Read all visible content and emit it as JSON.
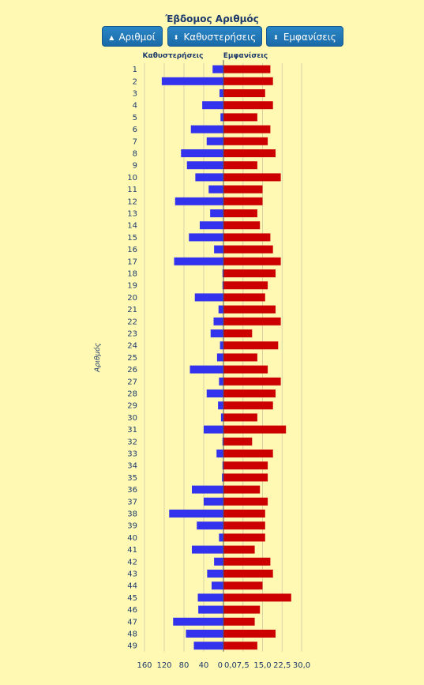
{
  "title": "Έβδομος Αριθμός",
  "buttons": [
    {
      "label": "Αριθμοί",
      "icon": "sort-up-icon"
    },
    {
      "label": "Καθυστερήσεις",
      "icon": "sort-both-icon"
    },
    {
      "label": "Εμφανίσεις",
      "icon": "sort-both-icon"
    }
  ],
  "chart_data": {
    "type": "bar",
    "orientation": "horizontal",
    "ylabel": "Αριθμός",
    "left_header": "Καθυστερήσεις",
    "right_header": "Εμφανίσεις",
    "left_ticks": [
      "160",
      "120",
      "80",
      "40",
      "0"
    ],
    "right_ticks": [
      "0,0",
      "7,5",
      "15,0",
      "22,5",
      "30,0"
    ],
    "left_xlim": [
      160,
      0
    ],
    "right_xlim": [
      0,
      30
    ],
    "grid": true,
    "categories": [
      "1",
      "2",
      "3",
      "4",
      "5",
      "6",
      "7",
      "8",
      "9",
      "10",
      "11",
      "12",
      "13",
      "14",
      "15",
      "16",
      "17",
      "18",
      "19",
      "20",
      "21",
      "22",
      "23",
      "24",
      "25",
      "26",
      "27",
      "28",
      "29",
      "30",
      "31",
      "32",
      "33",
      "34",
      "35",
      "36",
      "37",
      "38",
      "39",
      "40",
      "41",
      "42",
      "43",
      "44",
      "45",
      "46",
      "47",
      "48",
      "49"
    ],
    "series": [
      {
        "name": "Καθυστερήσεις",
        "color": "#3333ee",
        "values": [
          22,
          125,
          8,
          43,
          6,
          66,
          34,
          86,
          74,
          57,
          30,
          98,
          27,
          48,
          70,
          19,
          100,
          2,
          2,
          58,
          10,
          20,
          26,
          7,
          13,
          68,
          9,
          34,
          11,
          5,
          40,
          2,
          14,
          2,
          3,
          64,
          40,
          110,
          54,
          9,
          64,
          19,
          33,
          24,
          52,
          51,
          102,
          76,
          60
        ]
      },
      {
        "name": "Εμφανίσεις",
        "color": "#cc0000",
        "values": [
          18,
          19,
          16,
          19,
          13,
          18,
          17,
          20,
          13,
          22,
          15,
          15,
          13,
          14,
          18,
          19,
          22,
          20,
          17,
          16,
          20,
          22,
          11,
          21,
          13,
          17,
          22,
          20,
          19,
          13,
          24,
          11,
          19,
          17,
          17,
          14,
          17,
          16,
          16,
          16,
          12,
          18,
          19,
          15,
          26,
          14,
          12,
          20,
          13
        ]
      }
    ]
  }
}
